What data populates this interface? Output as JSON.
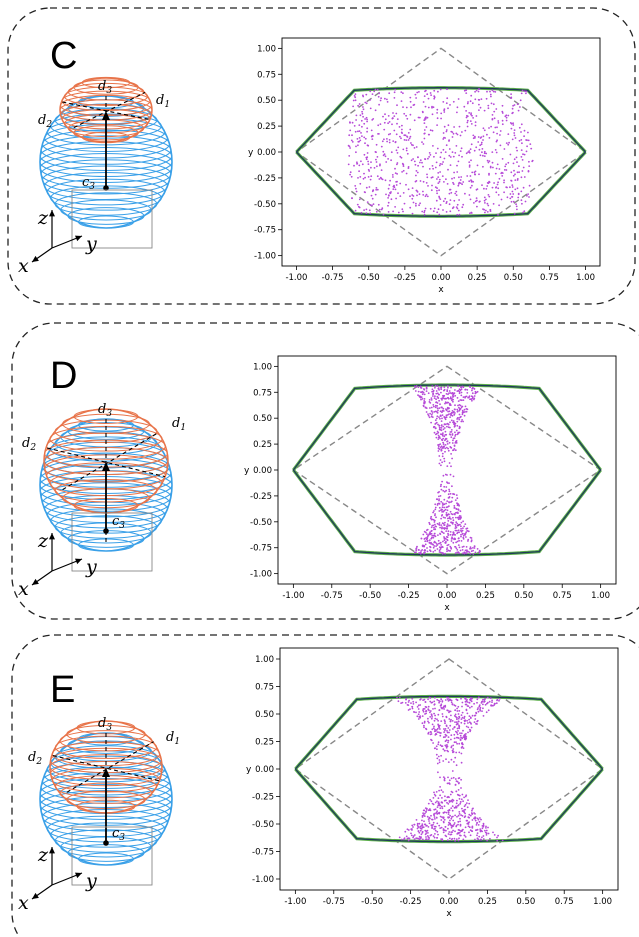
{
  "panels": [
    {
      "id": "C",
      "label": "C",
      "colors": {
        "sphere": "#3aa0e8",
        "cap": "#e8744a",
        "points": "#b64ad8",
        "envelope": "#1f3a5a",
        "boundary": "#5cae4a",
        "diamond": "#888888"
      },
      "sphere_labels": {
        "d1": "d1",
        "d2": "d2",
        "d3": "d3",
        "c3": "c3"
      },
      "axes_labels": {
        "x": "x",
        "y": "y",
        "z": "z"
      },
      "chart_data": {
        "type": "scatter",
        "xlabel": "x",
        "ylabel": "y",
        "xlim": [
          -1.1,
          1.1
        ],
        "ylim": [
          -1.1,
          1.1
        ],
        "xticks": [
          "-1.00",
          "-0.75",
          "-0.50",
          "-0.25",
          "0.00",
          "0.25",
          "0.50",
          "0.75",
          "1.00"
        ],
        "yticks": [
          "1.00",
          "0.75",
          "0.50",
          "0.25",
          "0.00",
          "-0.25",
          "-0.50",
          "-0.75",
          "-1.00"
        ],
        "envelope_peak": 0.62,
        "cloud_half_width": 0.64,
        "cloud_profile": "barrel"
      }
    },
    {
      "id": "D",
      "label": "D",
      "colors": {
        "sphere": "#3aa0e8",
        "cap": "#e8744a",
        "points": "#b64ad8",
        "envelope": "#1f3a5a",
        "boundary": "#5cae4a",
        "diamond": "#888888"
      },
      "sphere_labels": {
        "d1": "d1",
        "d2": "d2",
        "d3": "d3",
        "c3": "c3"
      },
      "axes_labels": {
        "x": "x",
        "y": "y",
        "z": "z"
      },
      "chart_data": {
        "type": "scatter",
        "xlabel": "x",
        "ylabel": "y",
        "xlim": [
          -1.1,
          1.1
        ],
        "ylim": [
          -1.1,
          1.1
        ],
        "xticks": [
          "-1.00",
          "-0.75",
          "-0.50",
          "-0.25",
          "0.00",
          "0.25",
          "0.50",
          "0.75",
          "1.00"
        ],
        "yticks": [
          "1.00",
          "0.75",
          "0.50",
          "0.25",
          "0.00",
          "-0.25",
          "-0.50",
          "-0.75",
          "-1.00"
        ],
        "envelope_peak": 0.82,
        "cloud_half_width": 0.24,
        "cloud_profile": "hourglass"
      }
    },
    {
      "id": "E",
      "label": "E",
      "colors": {
        "sphere": "#3aa0e8",
        "cap": "#e8744a",
        "points": "#b64ad8",
        "envelope": "#1f3a5a",
        "boundary": "#5cae4a",
        "diamond": "#888888"
      },
      "sphere_labels": {
        "d1": "d1",
        "d2": "d2",
        "d3": "d3",
        "c3": "c3"
      },
      "axes_labels": {
        "x": "x",
        "y": "y",
        "z": "z"
      },
      "chart_data": {
        "type": "scatter",
        "xlabel": "x",
        "ylabel": "y",
        "xlim": [
          -1.1,
          1.1
        ],
        "ylim": [
          -1.1,
          1.1
        ],
        "xticks": [
          "-1.00",
          "-0.75",
          "-0.50",
          "-0.25",
          "0.00",
          "0.25",
          "0.50",
          "0.75",
          "1.00"
        ],
        "yticks": [
          "1.00",
          "0.75",
          "0.50",
          "0.25",
          "0.00",
          "-0.25",
          "-0.50",
          "-0.75",
          "-1.00"
        ],
        "envelope_peak": 0.66,
        "cloud_half_width": 0.37,
        "cloud_profile": "hourglass"
      }
    }
  ]
}
